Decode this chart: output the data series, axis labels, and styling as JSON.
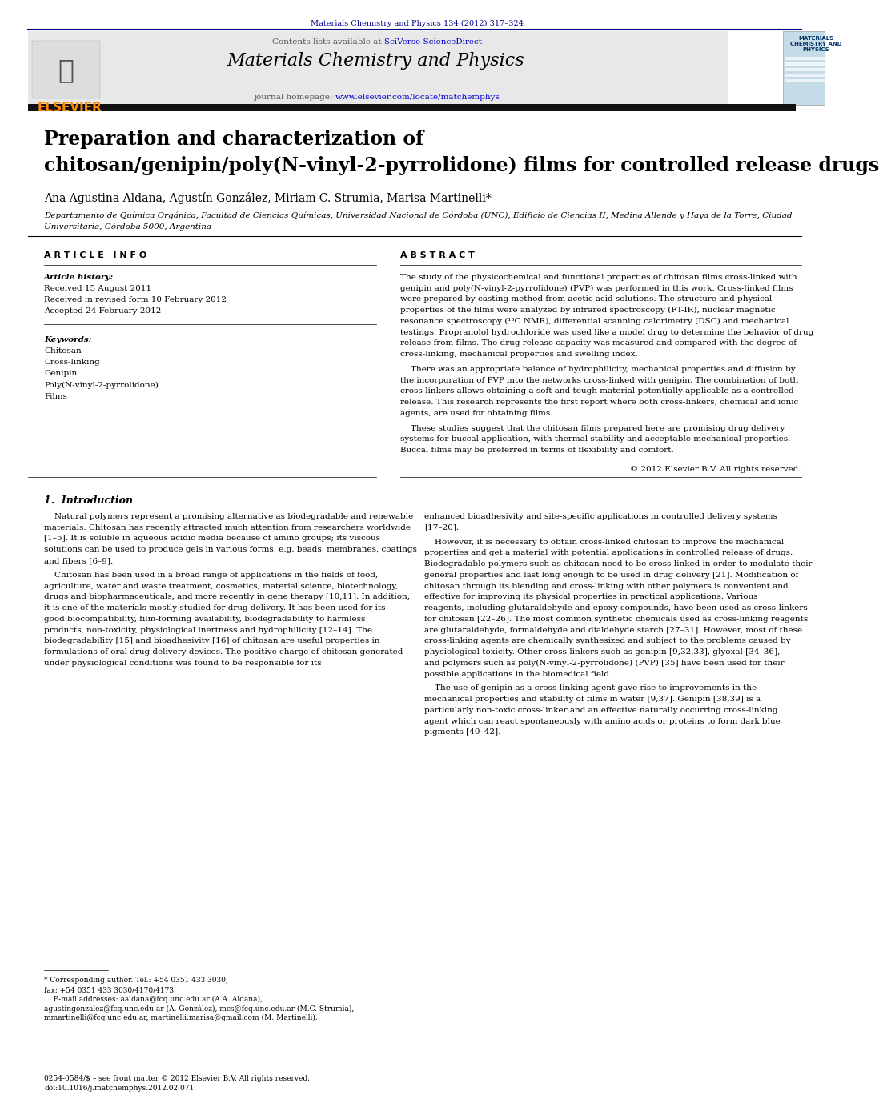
{
  "page_width": 10.21,
  "page_height": 13.51,
  "bg_color": "#ffffff",
  "header_journal_ref": "Materials Chemistry and Physics 134 (2012) 317–324",
  "header_ref_color": "#00008B",
  "journal_name": "Materials Chemistry and Physics",
  "contents_text": "Contents lists available at ",
  "sciverse_text": "SciVerse ScienceDirect",
  "sciverse_color": "#0000CD",
  "homepage_text": "journal homepage: ",
  "homepage_url": "www.elsevier.com/locate/matchemphys",
  "homepage_url_color": "#0000CD",
  "elsevier_color": "#FF8C00",
  "header_bg": "#E8E8E8",
  "dark_bar_color": "#111111",
  "article_title_line1": "Preparation and characterization of",
  "article_title_line2": "chitosan/genipin/poly(N-vinyl-2-pyrrolidone) films for controlled release drugs",
  "title_fontsize": 17,
  "authors": "Ana Agustina Aldana, Agustín González, Miriam C. Strumia, Marisa Martinelli*",
  "authors_fontsize": 10,
  "affiliation_line1": "Departamento de Química Orgánica, Facultad de Ciencias Químicas, Universidad Nacional de Córdoba (UNC), Edificio de Ciencias II, Medina Allende y Haya de la Torre, Ciudad",
  "affiliation_line2": "Universitaria, Córdoba 5000, Argentina",
  "affiliation_fontsize": 7.5,
  "article_info_header": "A R T I C L E   I N F O",
  "abstract_header": "A B S T R A C T",
  "article_history_label": "Article history:",
  "received_text": "Received 15 August 2011",
  "revised_text": "Received in revised form 10 February 2012",
  "accepted_text": "Accepted 24 February 2012",
  "keywords_label": "Keywords:",
  "keywords": [
    "Chitosan",
    "Cross-linking",
    "Genipin",
    "Poly(N-vinyl-2-pyrrolidone)",
    "Films"
  ],
  "abstract_para1": "The study of the physicochemical and functional properties of chitosan films cross-linked with genipin and poly(N-vinyl-2-pyrrolidone) (PVP) was performed in this work. Cross-linked films were prepared by casting method from acetic acid solutions. The structure and physical properties of the films were analyzed by infrared spectroscopy (FT-IR), nuclear magnetic resonance spectroscopy (¹³C NMR), differential scanning calorimetry (DSC) and mechanical testings. Propranolol hydrochloride was used like a model drug to determine the behavior of drug release from films. The drug release capacity was measured and compared with the degree of cross-linking, mechanical properties and swelling index.",
  "abstract_para2": "    There was an appropriate balance of hydrophilicity, mechanical properties and diffusion by the incorporation of PVP into the networks cross-linked with genipin. The combination of both cross-linkers allows obtaining a soft and tough material potentially applicable as a controlled release. This research represents the first report where both cross-linkers, chemical and ionic agents, are used for obtaining films.",
  "abstract_para3": "    These studies suggest that the chitosan films prepared here are promising drug delivery systems for buccal application, with thermal stability and acceptable mechanical properties. Buccal films may be preferred in terms of flexibility and comfort.",
  "elsevier_rights": "© 2012 Elsevier B.V. All rights reserved.",
  "section1_title": "1.  Introduction",
  "intro_col1_para1": "    Natural polymers represent a promising alternative as biodegradable and renewable materials. Chitosan has recently attracted much attention from researchers worldwide [1–5]. It is soluble in aqueous acidic media because of amino groups; its viscous solutions can be used to produce gels in various forms, e.g. beads, membranes, coatings and fibers [6–9].",
  "intro_col1_para2": "    Chitosan has been used in a broad range of applications in the fields of food, agriculture, water and waste treatment, cosmetics, material science, biotechnology, drugs and biopharmaceuticals, and more recently in gene therapy [10,11]. In addition, it is one of the materials mostly studied for drug delivery. It has been used for its good biocompatibility, film-forming availability, biodegradability to harmless products, non-toxicity, physiological inertness and hydrophilicity [12–14]. The biodegradability [15] and bioadhesivity [16] of chitosan are useful properties in formulations of oral drug delivery devices. The positive charge of chitosan generated under physiological conditions was found to be responsible for its",
  "intro_col2_para1": "enhanced bioadhesivity and site-specific applications in controlled delivery systems [17–20].",
  "intro_col2_para2": "    However, it is necessary to obtain cross-linked chitosan to improve the mechanical properties and get a material with potential applications in controlled release of drugs. Biodegradable polymers such as chitosan need to be cross-linked in order to modulate their general properties and last long enough to be used in drug delivery [21]. Modification of chitosan through its blending and cross-linking with other polymers is convenient and effective for improving its physical properties in practical applications. Various reagents, including glutaraldehyde and epoxy compounds, have been used as cross-linkers for chitosan [22–26]. The most common synthetic chemicals used as cross-linking reagents are glutaraldehyde, formaldehyde and dialdehyde starch [27–31]. However, most of these cross-linking agents are chemically synthesized and subject to the problems caused by physiological toxicity. Other cross-linkers such as genipin [9,32,33], glyoxal [34–36], and polymers such as poly(N-vinyl-2-pyrrolidone) (PVP) [35] have been used for their possible applications in the biomedical field.",
  "intro_col2_para3": "    The use of genipin as a cross-linking agent gave rise to improvements in the mechanical properties and stability of films in water [9,37]. Genipin [38,39] is a particularly non-toxic cross-linker and an effective naturally occurring cross-linking agent which can react spontaneously with amino acids or proteins to form dark blue pigments [40–42].",
  "footnote_line1": "* Corresponding author. Tel.: +54 0351 433 3030;",
  "footnote_line2": "fax: +54 0351 433 3030/4170/4173.",
  "footnote_line3": "    E-mail addresses: aaldana@fcq.unc.edu.ar (A.A. Aldana),",
  "footnote_line4": "agustingonzalez@fcq.unc.edu.ar (A. González), mcs@fcq.unc.edu.ar (M.C. Strumia),",
  "footnote_line5": "mmartinelli@fcq.unc.edu.ar, martinelli.marisa@gmail.com (M. Martinelli).",
  "issn_text": "0254-0584/$ – see front matter © 2012 Elsevier B.V. All rights reserved.",
  "doi_text": "doi:10.1016/j.matchemphys.2012.02.071",
  "body_fontsize": 7.5,
  "section_fontsize": 9,
  "col_split": 0.48
}
